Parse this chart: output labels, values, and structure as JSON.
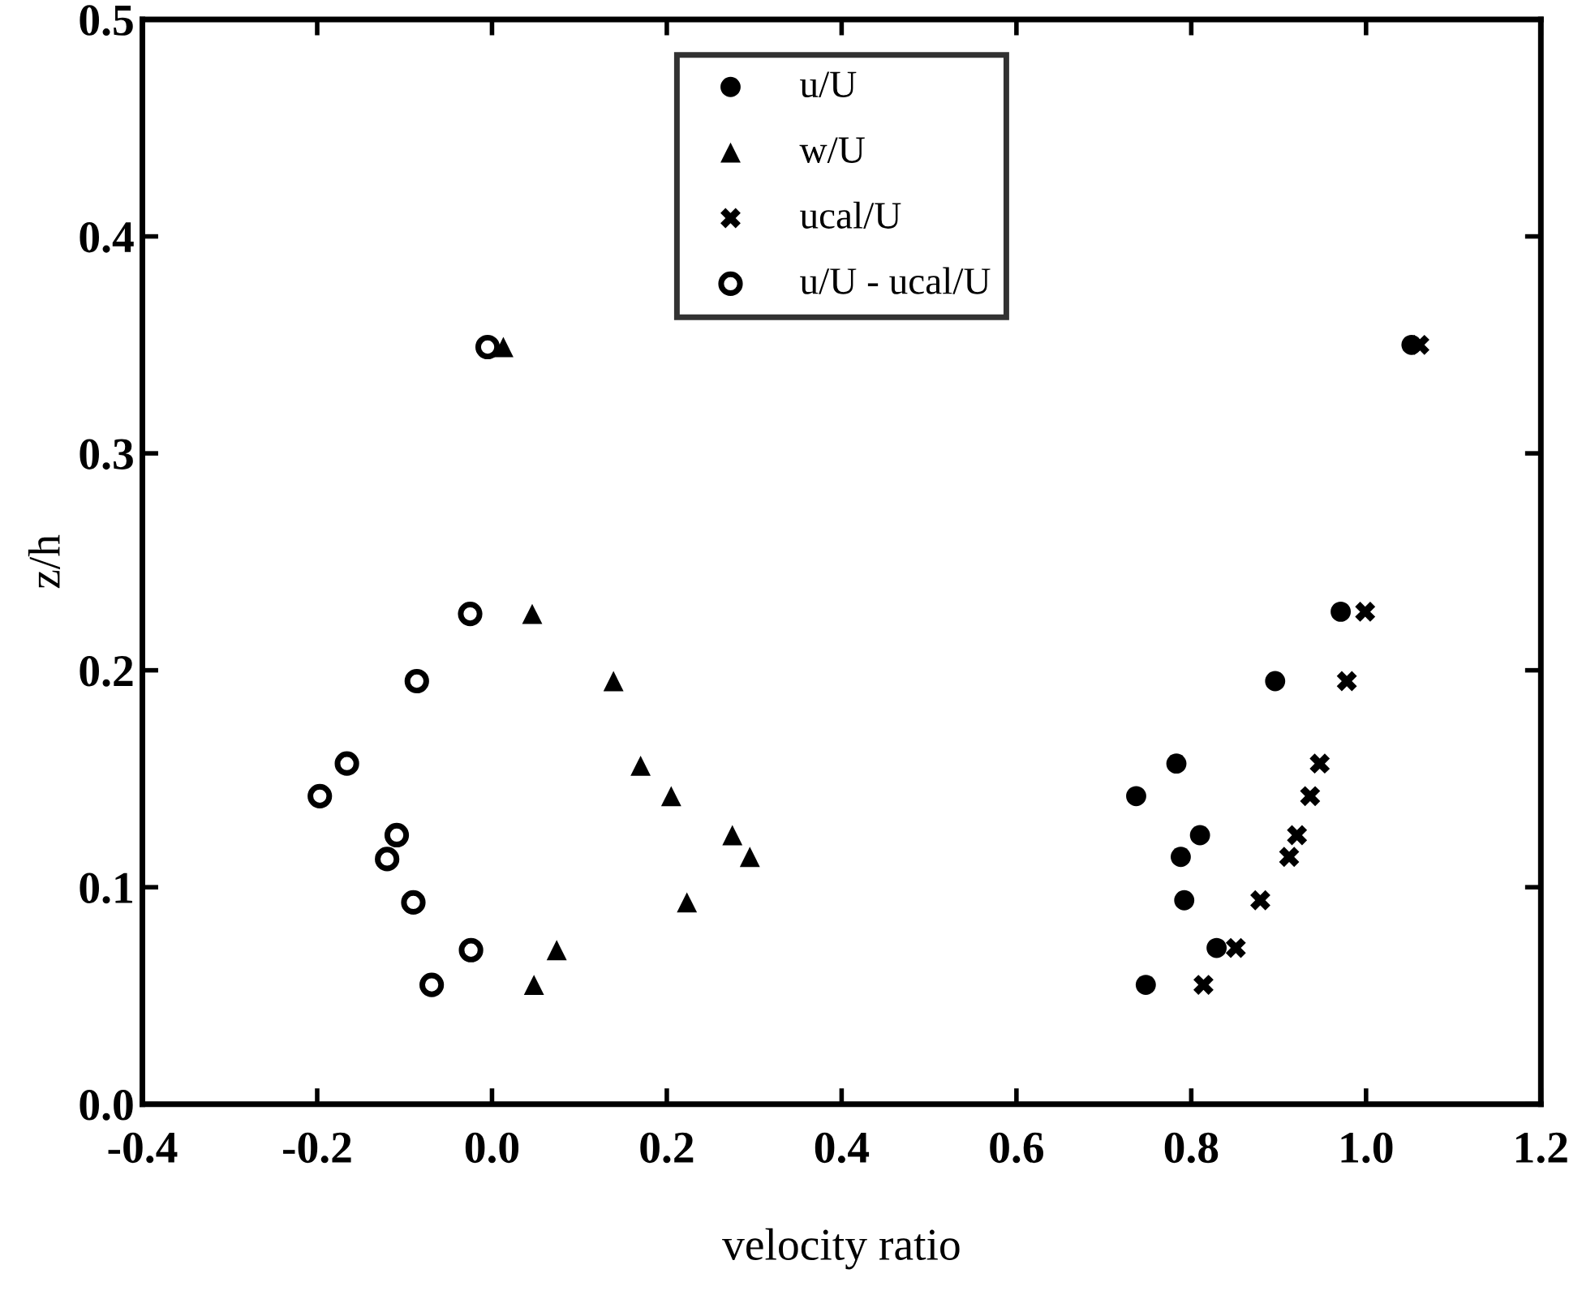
{
  "chart_data": {
    "type": "scatter",
    "xlabel": "velocity ratio",
    "ylabel": "z/h",
    "xlim": [
      -0.4,
      1.2
    ],
    "ylim": [
      0.0,
      0.5
    ],
    "xticks": [
      -0.4,
      -0.2,
      {
        "value": 0,
        "label": "0.0"
      },
      0.2,
      0.4,
      0.6,
      0.8,
      {
        "value": 1,
        "label": "1.0"
      },
      1.2
    ],
    "yticks": [
      {
        "value": 0,
        "label": "0.0"
      },
      0.1,
      0.2,
      0.3,
      0.4,
      0.5
    ],
    "grid": false,
    "legend": "top",
    "tick_labels": true,
    "series": [
      {
        "name": "u/U",
        "color": "#000000",
        "marker": "circle",
        "x": [
          1.052,
          0.971,
          0.896,
          0.783,
          0.737,
          0.81,
          0.788,
          0.792,
          0.829,
          0.748
        ],
        "values": [
          0.35,
          0.227,
          0.195,
          0.157,
          0.142,
          0.124,
          0.114,
          0.094,
          0.072,
          0.055
        ]
      },
      {
        "name": "w/U",
        "color": "#000000",
        "marker": "triangle",
        "x": [
          0.013,
          0.046,
          0.139,
          0.17,
          0.205,
          0.275,
          0.295,
          0.223,
          0.074,
          0.048
        ],
        "values": [
          0.349,
          0.226,
          0.195,
          0.156,
          0.142,
          0.124,
          0.114,
          0.093,
          0.071,
          0.055
        ]
      },
      {
        "name": "ucal/U",
        "color": "#000000",
        "marker": "cross",
        "x": [
          1.061,
          0.999,
          0.978,
          0.947,
          0.936,
          0.921,
          0.912,
          0.879,
          0.851,
          0.814
        ],
        "values": [
          0.35,
          0.227,
          0.195,
          0.157,
          0.142,
          0.124,
          0.114,
          0.094,
          0.072,
          0.055
        ]
      },
      {
        "name": "u/U - ucal/U",
        "color": "#ffffff",
        "marker": "open circle",
        "x": [
          -0.005,
          -0.025,
          -0.086,
          -0.166,
          -0.197,
          -0.109,
          -0.12,
          -0.09,
          -0.024,
          -0.069
        ],
        "values": [
          0.349,
          0.226,
          0.195,
          0.157,
          0.142,
          0.124,
          0.113,
          0.093,
          0.071,
          0.055
        ]
      }
    ]
  }
}
